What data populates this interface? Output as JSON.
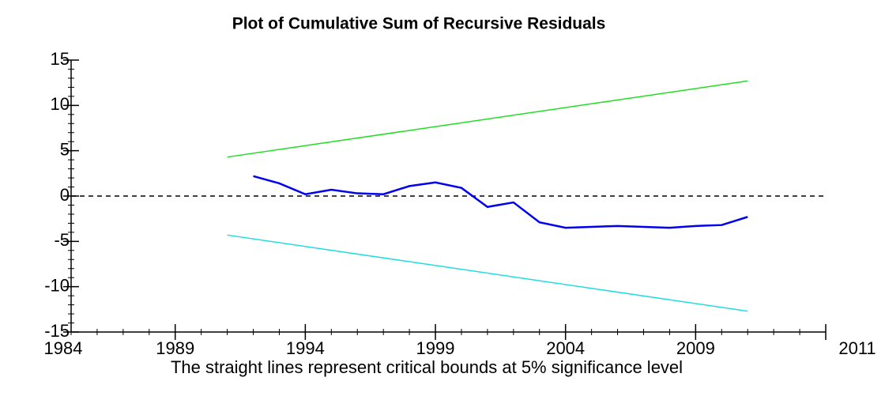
{
  "chart_data": {
    "type": "line",
    "title": "Plot of Cumulative Sum of Recursive Residuals",
    "caption": "The straight lines represent critical bounds at 5% significance level",
    "x_axis_end_label": "2011",
    "xlim": [
      1985,
      2014
    ],
    "xticks": [
      1984,
      1989,
      1994,
      1999,
      2004,
      2009
    ],
    "ylim": [
      -15,
      15
    ],
    "yticks": [
      -15,
      -10,
      -5,
      0,
      5,
      10,
      15
    ],
    "reference_line": 0,
    "series": [
      {
        "color": "#0000ee",
        "x": [
          1992,
          1993,
          1994,
          1995,
          1996,
          1997,
          1998,
          1999,
          2000,
          2001,
          2002,
          2003,
          2004,
          2005,
          2006,
          2007,
          2008,
          2009,
          2010,
          2011
        ],
        "values": [
          2.2,
          1.4,
          0.2,
          0.7,
          0.3,
          0.2,
          1.1,
          1.5,
          0.9,
          -1.2,
          -0.7,
          -2.9,
          -3.5,
          -3.4,
          -3.3,
          -3.4,
          -3.5,
          -3.3,
          -3.2,
          -2.3
        ]
      },
      {
        "color": "#22dd22",
        "x": [
          1991,
          2011
        ],
        "values": [
          4.3,
          12.7
        ]
      },
      {
        "color": "#22dddd",
        "x": [
          1991,
          2011
        ],
        "values": [
          -4.3,
          -12.7
        ]
      }
    ]
  }
}
